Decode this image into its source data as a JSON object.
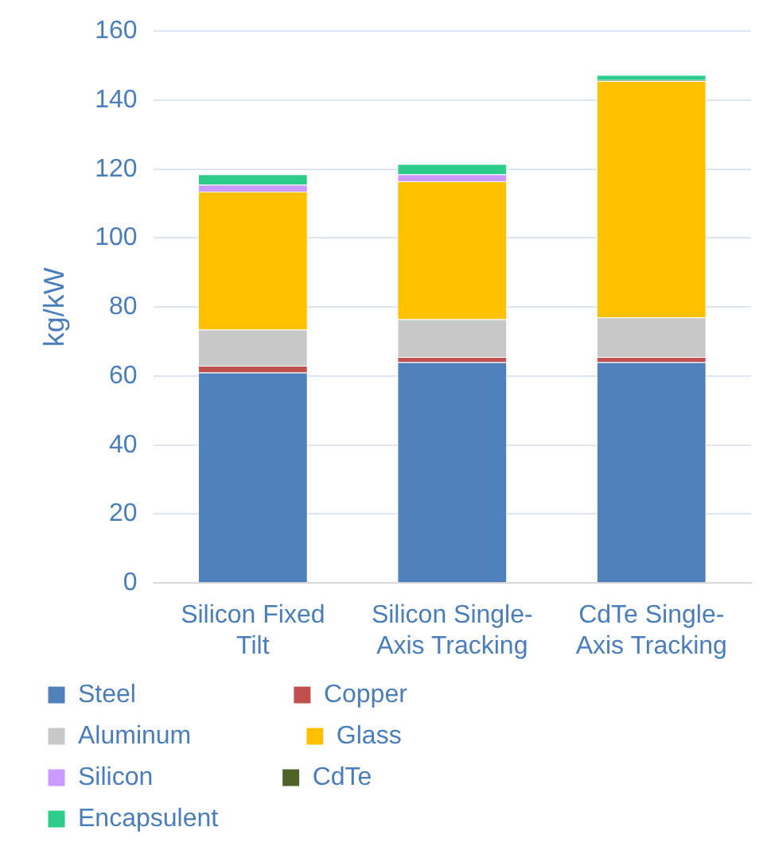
{
  "chart_data": {
    "type": "bar",
    "stacked": true,
    "ylabel": "kg/kW",
    "categories": [
      "Silicon Fixed Tilt",
      "Silicon Single-Axis Tracking",
      "CdTe Single-Axis Tracking"
    ],
    "ylim": [
      0,
      160
    ],
    "yticks": [
      0,
      20,
      40,
      60,
      80,
      100,
      120,
      140,
      160
    ],
    "grid": "y",
    "legend": "bottom",
    "series": [
      {
        "name": "Steel",
        "color": "#4f81bd",
        "values": [
          61,
          64,
          64
        ]
      },
      {
        "name": "Copper",
        "color": "#c0504d",
        "values": [
          2,
          1.5,
          1.5
        ]
      },
      {
        "name": "Aluminum",
        "color": "#c8c8c8",
        "values": [
          10.5,
          11,
          11.5
        ]
      },
      {
        "name": "Glass",
        "color": "#ffc000",
        "values": [
          40,
          40,
          68.5
        ]
      },
      {
        "name": "Silicon",
        "color": "#cc99ff",
        "values": [
          2,
          2,
          0
        ]
      },
      {
        "name": "CdTe",
        "color": "#4f6228",
        "values": [
          0,
          0,
          0.3
        ]
      },
      {
        "name": "Encapsulent",
        "color": "#2ecc8a",
        "values": [
          3,
          3,
          1.5
        ]
      }
    ]
  }
}
